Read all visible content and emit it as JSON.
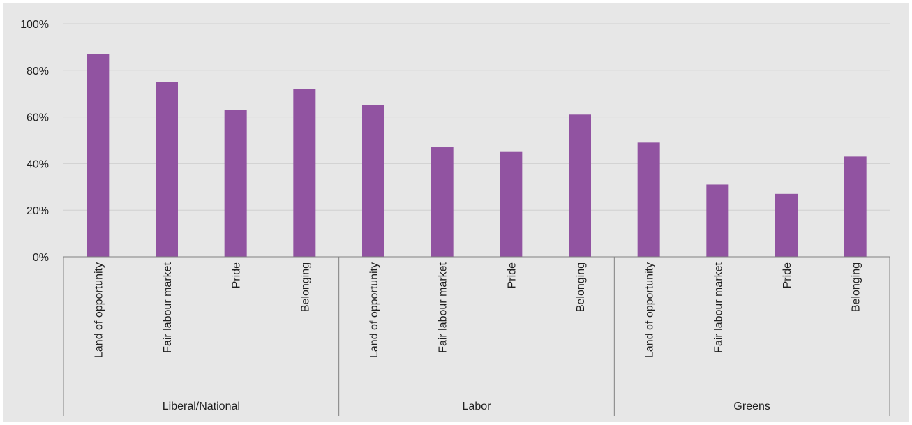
{
  "chart_data": {
    "type": "bar",
    "title": "",
    "xlabel": "",
    "ylabel": "",
    "ylim": [
      0,
      100
    ],
    "yticks": [
      "0%",
      "20%",
      "40%",
      "60%",
      "80%",
      "100%"
    ],
    "ytick_values": [
      0,
      20,
      40,
      60,
      80,
      100
    ],
    "grid": true,
    "legend": "none",
    "bar_color": "#9153a1",
    "background_color": "#e7e7e7",
    "groups": [
      {
        "name": "Liberal/National",
        "categories": [
          "Land of opportunity",
          "Fair labour market",
          "Pride",
          "Belonging"
        ],
        "values": [
          87,
          75,
          63,
          72
        ]
      },
      {
        "name": "Labor",
        "categories": [
          "Land of opportunity",
          "Fair labour market",
          "Pride",
          "Belonging"
        ],
        "values": [
          65,
          47,
          45,
          61
        ]
      },
      {
        "name": "Greens",
        "categories": [
          "Land of opportunity",
          "Fair labour market",
          "Pride",
          "Belonging"
        ],
        "values": [
          49,
          31,
          27,
          43
        ]
      }
    ]
  }
}
